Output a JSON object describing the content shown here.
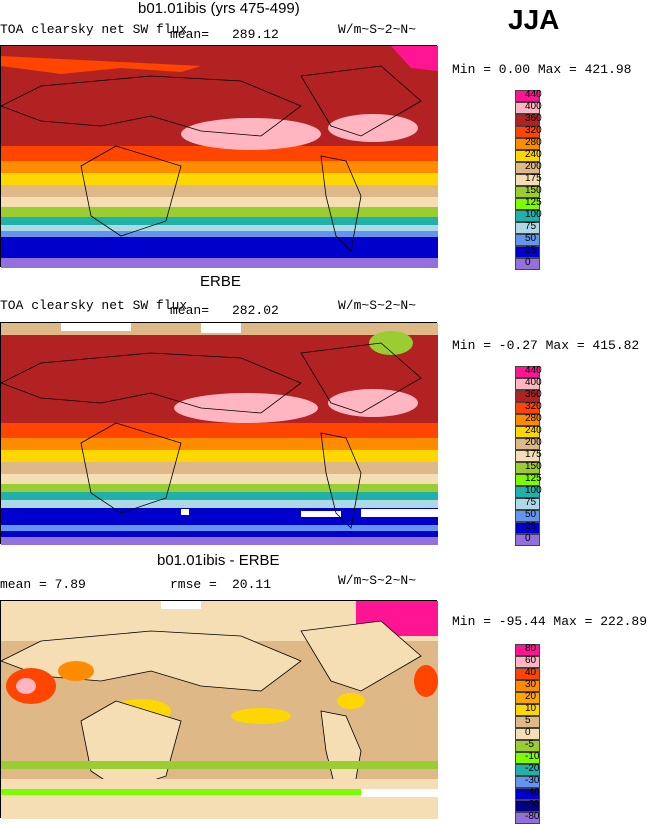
{
  "season": "JJA",
  "panels": [
    {
      "title": "b01.01ibis (yrs 475-499)",
      "left_label": "TOA clearsky net SW flux",
      "mean_label": "mean=",
      "mean_value": "289.12",
      "units": "W/m~S~2~N~",
      "minmax": "Min =   0.00 Max = 421.98",
      "legend": {
        "levels": [
          "440",
          "400",
          "360",
          "320",
          "280",
          "240",
          "200",
          "175",
          "150",
          "125",
          "100",
          "75",
          "50",
          "25",
          "0"
        ],
        "colors": [
          "#ff1493",
          "#ffb6c1",
          "#b22222",
          "#ff4500",
          "#ff8c00",
          "#ffd700",
          "#deb887",
          "#f5deb3",
          "#9acd32",
          "#7cfc00",
          "#20b2aa",
          "#add8e6",
          "#6495ed",
          "#0000cd",
          "#9370db"
        ]
      }
    },
    {
      "title": "ERBE",
      "left_label": "TOA clearsky net SW flux",
      "mean_label": "mean=",
      "mean_value": "282.02",
      "units": "W/m~S~2~N~",
      "minmax": "Min =  -0.27 Max = 415.82",
      "legend": {
        "levels": [
          "440",
          "400",
          "360",
          "320",
          "280",
          "240",
          "200",
          "175",
          "150",
          "125",
          "100",
          "75",
          "50",
          "25",
          "0"
        ],
        "colors": [
          "#ff1493",
          "#ffb6c1",
          "#b22222",
          "#ff4500",
          "#ff8c00",
          "#ffd700",
          "#deb887",
          "#f5deb3",
          "#9acd32",
          "#7cfc00",
          "#20b2aa",
          "#add8e6",
          "#6495ed",
          "#0000cd",
          "#9370db"
        ]
      }
    },
    {
      "title": "b01.01ibis - ERBE",
      "left_label": "mean =    7.89",
      "mean_label": "rmse =",
      "mean_value": "20.11",
      "units": "W/m~S~2~N~",
      "minmax": "Min = -95.44 Max = 222.89",
      "legend": {
        "levels": [
          "80",
          "60",
          "40",
          "30",
          "20",
          "10",
          "5",
          "0",
          "-5",
          "-10",
          "-20",
          "-30",
          "-40",
          "-60",
          "-80"
        ],
        "colors": [
          "#ff1493",
          "#ffb6c1",
          "#ff4500",
          "#ff8c00",
          "#ffa500",
          "#ffd700",
          "#deb887",
          "#f5deb3",
          "#9acd32",
          "#7cfc00",
          "#20b2aa",
          "#6495ed",
          "#0000cd",
          "#00008b",
          "#9370db"
        ]
      }
    }
  ]
}
